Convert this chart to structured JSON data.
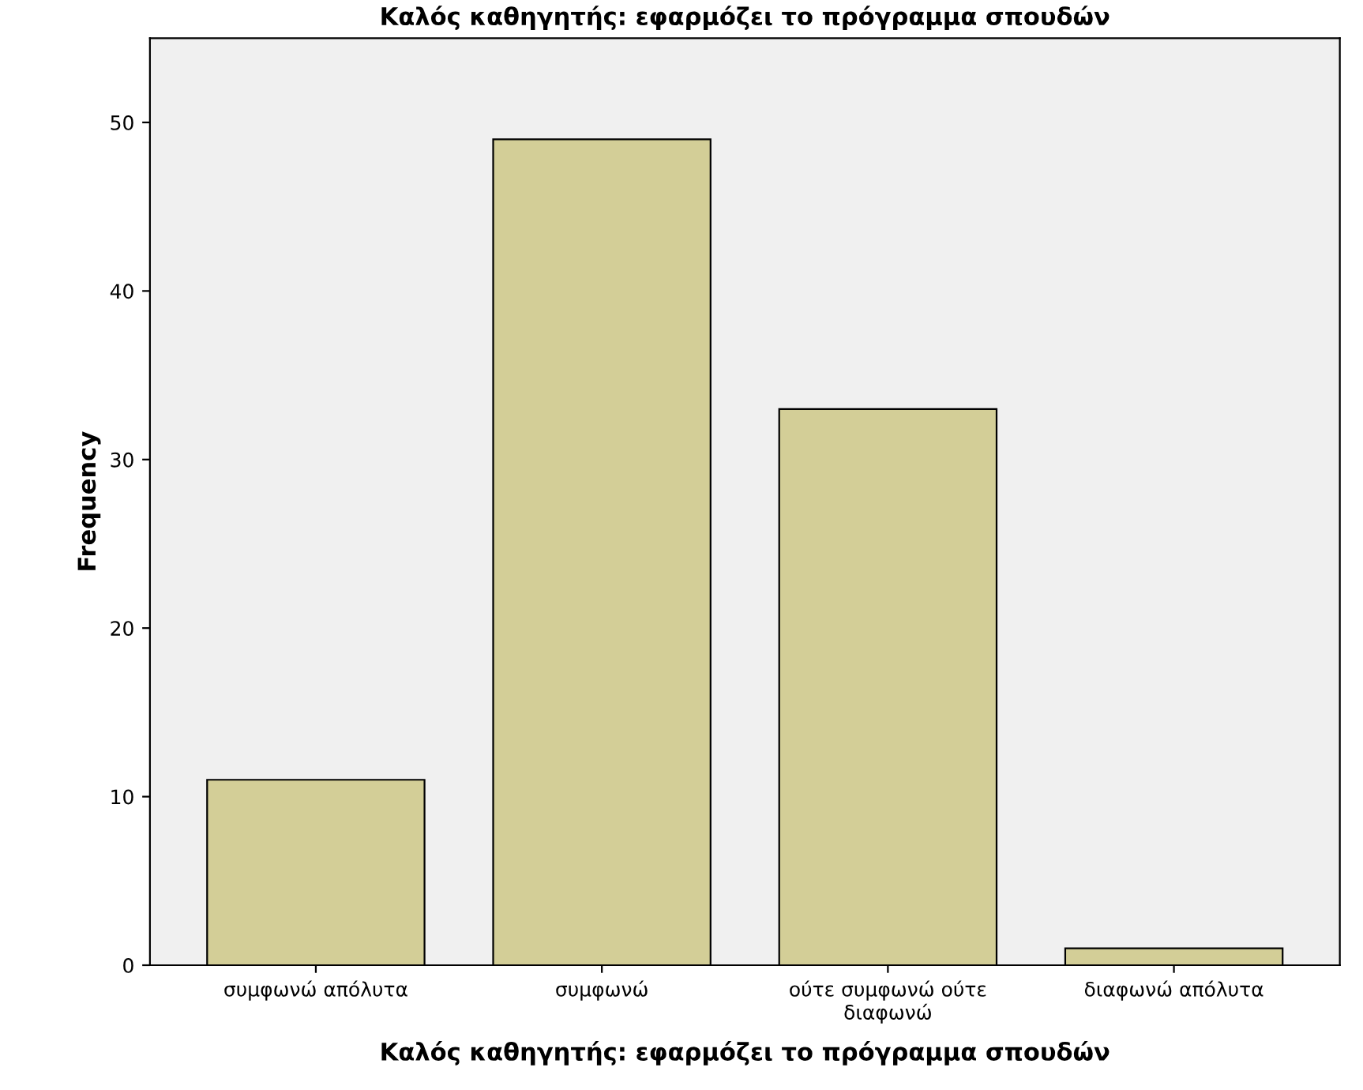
{
  "chart_data": {
    "type": "bar",
    "title": "Καλός καθηγητής: εφαρμόζει το πρόγραμμα σπουδών",
    "xlabel": "Καλός καθηγητής: εφαρμόζει το πρόγραμμα σπουδών",
    "ylabel": "Frequency",
    "categories": [
      "συμφωνώ απόλυτα",
      "συμφωνώ",
      "ούτε συμφωνώ ούτε\nδιαφωνώ",
      "διαφωνώ απόλυτα"
    ],
    "values": [
      11,
      49,
      33,
      1
    ],
    "color": "#d3ce97",
    "ylim": [
      0,
      55
    ],
    "yticks": [
      0,
      10,
      20,
      30,
      40,
      50
    ],
    "grid": false,
    "legend": false
  }
}
